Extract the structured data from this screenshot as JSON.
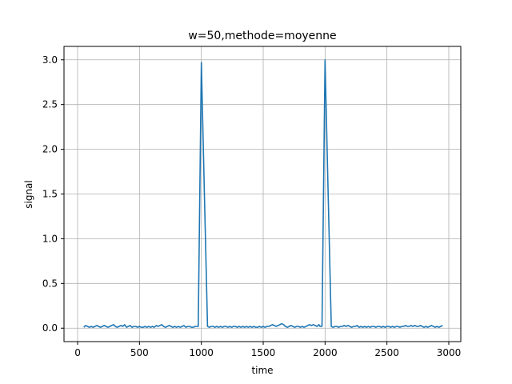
{
  "chart_data": {
    "type": "line",
    "title": "w=50,methode=moyenne",
    "xlabel": "time",
    "ylabel": "signal",
    "xlim": [
      -110,
      3097
    ],
    "ylim": [
      -0.15,
      3.15
    ],
    "xticks": [
      0,
      500,
      1000,
      1500,
      2000,
      2500,
      3000
    ],
    "xtick_labels": [
      "0",
      "500",
      "1000",
      "1500",
      "2000",
      "2500",
      "3000"
    ],
    "yticks": [
      0.0,
      0.5,
      1.0,
      1.5,
      2.0,
      2.5,
      3.0
    ],
    "ytick_labels": [
      "0.0",
      "0.5",
      "1.0",
      "1.5",
      "2.0",
      "2.5",
      "3.0"
    ],
    "grid": true,
    "line_color": "#1f77b4",
    "series": [
      {
        "x": [
          50,
          65,
          80,
          95,
          110,
          125,
          140,
          155,
          170,
          185,
          200,
          215,
          230,
          245,
          260,
          275,
          290,
          305,
          320,
          335,
          350,
          365,
          380,
          395,
          410,
          425,
          440,
          455,
          470,
          485,
          500,
          515,
          530,
          545,
          560,
          575,
          590,
          605,
          620,
          635,
          650,
          665,
          680,
          695,
          710,
          725,
          740,
          755,
          770,
          785,
          800,
          815,
          830,
          845,
          860,
          875,
          890,
          905,
          920,
          935,
          950,
          965,
          975,
          1000,
          1025,
          1050,
          1065,
          1080,
          1095,
          1110,
          1125,
          1140,
          1155,
          1170,
          1185,
          1200,
          1215,
          1230,
          1245,
          1260,
          1275,
          1290,
          1305,
          1320,
          1335,
          1350,
          1365,
          1380,
          1395,
          1410,
          1425,
          1440,
          1455,
          1470,
          1485,
          1500,
          1515,
          1530,
          1545,
          1560,
          1575,
          1590,
          1605,
          1620,
          1635,
          1650,
          1665,
          1680,
          1695,
          1710,
          1725,
          1740,
          1755,
          1770,
          1785,
          1800,
          1815,
          1830,
          1845,
          1860,
          1875,
          1890,
          1905,
          1920,
          1935,
          1950,
          1960,
          1975,
          2000,
          2025,
          2050,
          2065,
          2080,
          2095,
          2110,
          2125,
          2140,
          2155,
          2170,
          2185,
          2200,
          2215,
          2230,
          2245,
          2260,
          2275,
          2290,
          2305,
          2320,
          2335,
          2350,
          2365,
          2380,
          2395,
          2410,
          2425,
          2440,
          2455,
          2470,
          2485,
          2500,
          2515,
          2530,
          2545,
          2560,
          2575,
          2590,
          2605,
          2620,
          2635,
          2650,
          2665,
          2680,
          2695,
          2710,
          2725,
          2740,
          2755,
          2770,
          2785,
          2800,
          2815,
          2830,
          2845,
          2860,
          2875,
          2890,
          2905,
          2920,
          2935,
          2950
        ],
        "y": [
          0.01,
          0.03,
          0.02,
          0.01,
          0.02,
          0.01,
          0.02,
          0.03,
          0.02,
          0.01,
          0.02,
          0.03,
          0.02,
          0.01,
          0.02,
          0.03,
          0.04,
          0.02,
          0.01,
          0.02,
          0.03,
          0.02,
          0.04,
          0.01,
          0.02,
          0.03,
          0.01,
          0.02,
          0.02,
          0.01,
          0.02,
          0.01,
          0.01,
          0.02,
          0.01,
          0.02,
          0.01,
          0.02,
          0.01,
          0.03,
          0.02,
          0.03,
          0.04,
          0.02,
          0.01,
          0.02,
          0.03,
          0.02,
          0.01,
          0.02,
          0.01,
          0.02,
          0.01,
          0.02,
          0.03,
          0.01,
          0.02,
          0.02,
          0.01,
          0.01,
          0.02,
          0.02,
          0.02,
          2.97,
          1.5,
          0.02,
          0.01,
          0.02,
          0.02,
          0.01,
          0.02,
          0.01,
          0.02,
          0.01,
          0.02,
          0.02,
          0.01,
          0.02,
          0.01,
          0.02,
          0.02,
          0.01,
          0.02,
          0.01,
          0.02,
          0.01,
          0.02,
          0.01,
          0.02,
          0.01,
          0.02,
          0.01,
          0.01,
          0.02,
          0.01,
          0.02,
          0.01,
          0.02,
          0.02,
          0.03,
          0.04,
          0.03,
          0.02,
          0.03,
          0.04,
          0.05,
          0.04,
          0.02,
          0.01,
          0.02,
          0.03,
          0.02,
          0.01,
          0.02,
          0.02,
          0.01,
          0.02,
          0.01,
          0.02,
          0.03,
          0.04,
          0.03,
          0.04,
          0.03,
          0.02,
          0.04,
          0.02,
          0.02,
          3.0,
          1.5,
          0.02,
          0.01,
          0.02,
          0.02,
          0.01,
          0.02,
          0.02,
          0.03,
          0.02,
          0.03,
          0.02,
          0.01,
          0.02,
          0.02,
          0.03,
          0.01,
          0.02,
          0.01,
          0.02,
          0.01,
          0.02,
          0.01,
          0.02,
          0.02,
          0.01,
          0.02,
          0.02,
          0.01,
          0.02,
          0.01,
          0.02,
          0.02,
          0.01,
          0.02,
          0.01,
          0.02,
          0.02,
          0.01,
          0.02,
          0.02,
          0.03,
          0.02,
          0.02,
          0.03,
          0.02,
          0.03,
          0.02,
          0.02,
          0.03,
          0.02,
          0.01,
          0.02,
          0.01,
          0.02,
          0.03,
          0.02,
          0.01,
          0.02,
          0.01,
          0.02,
          0.03
        ]
      }
    ]
  }
}
